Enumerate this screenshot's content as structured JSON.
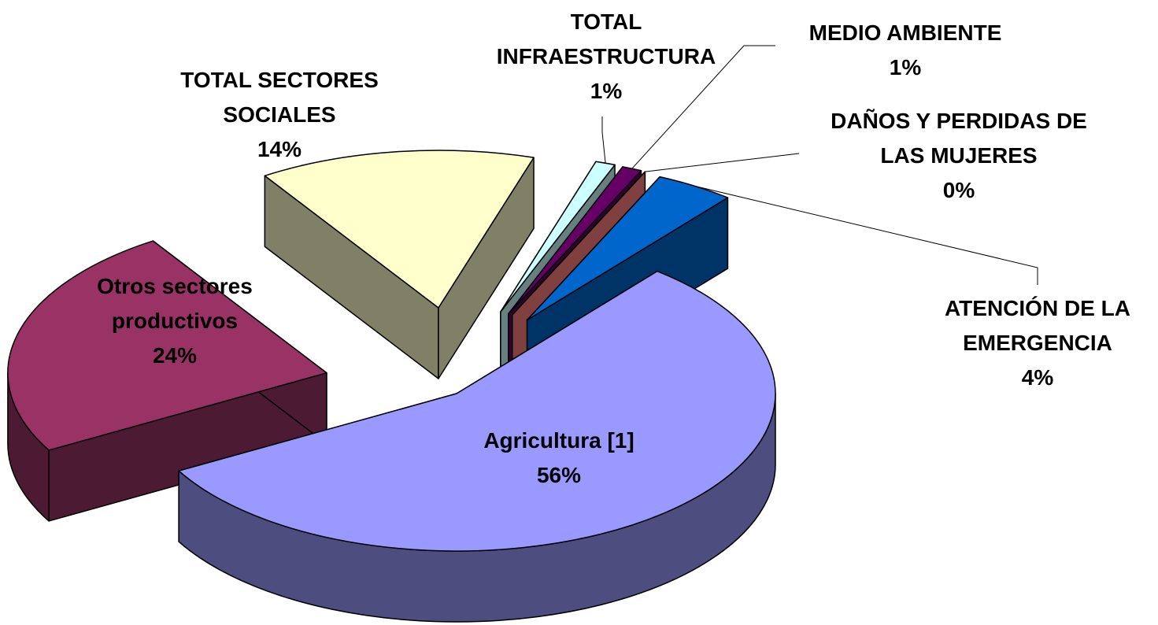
{
  "chart_data": {
    "type": "pie",
    "categories": [
      "Agricultura [1]",
      "Otros sectores productivos",
      "TOTAL SECTORES SOCIALES",
      "TOTAL INFRAESTRUCTURA",
      "MEDIO AMBIENTE",
      "DAÑOS Y PERDIDAS DE LAS MUJERES",
      "ATENCIÓN DE LA EMERGENCIA"
    ],
    "values": [
      56,
      24,
      14,
      1,
      1,
      0,
      4
    ],
    "value_labels": [
      "56%",
      "24%",
      "14%",
      "1%",
      "1%",
      "0%",
      "4%"
    ],
    "colors": [
      "#9999ff",
      "#993366",
      "#ffffcc",
      "#ccffff",
      "#660066",
      "#ff8080",
      "#0066cc"
    ]
  }
}
